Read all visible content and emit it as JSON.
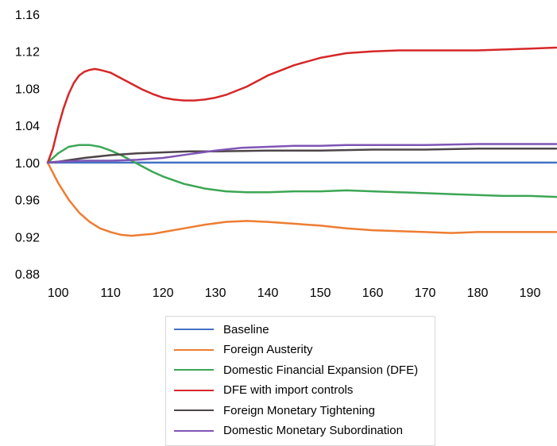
{
  "chart_data": {
    "type": "line",
    "title": "",
    "xlabel": "",
    "ylabel": "",
    "xlim": [
      98,
      195
    ],
    "ylim": [
      0.88,
      1.16
    ],
    "xticks": [
      100,
      110,
      120,
      130,
      140,
      150,
      160,
      170,
      180,
      190
    ],
    "yticks": [
      0.88,
      0.92,
      0.96,
      1.0,
      1.04,
      1.08,
      1.12,
      1.16
    ],
    "ytick_labels": [
      "0.88",
      "0.92",
      "0.96",
      "1.00",
      "1.04",
      "1.08",
      "1.12",
      "1.16"
    ],
    "grid": false,
    "legend_position": "bottom",
    "series": [
      {
        "name": "Baseline",
        "color": "#4472C4",
        "x": [
          98,
          195
        ],
        "y": [
          1.0,
          1.0
        ]
      },
      {
        "name": "Foreign Austerity",
        "color": "#ED7D31",
        "x": [
          98,
          100,
          102,
          104,
          106,
          108,
          110,
          112,
          114,
          116,
          118,
          120,
          124,
          128,
          132,
          136,
          140,
          145,
          150,
          155,
          160,
          165,
          170,
          175,
          180,
          185,
          190,
          195
        ],
        "y": [
          1.0,
          0.978,
          0.96,
          0.946,
          0.936,
          0.929,
          0.925,
          0.922,
          0.921,
          0.922,
          0.923,
          0.925,
          0.929,
          0.933,
          0.936,
          0.937,
          0.936,
          0.934,
          0.932,
          0.929,
          0.927,
          0.926,
          0.925,
          0.924,
          0.925,
          0.925,
          0.925,
          0.925
        ]
      },
      {
        "name": "Domestic Financial Expansion (DFE)",
        "color": "#3CA654",
        "x": [
          98,
          100,
          102,
          104,
          106,
          108,
          110,
          112,
          114,
          116,
          118,
          120,
          124,
          128,
          132,
          136,
          140,
          145,
          150,
          155,
          160,
          165,
          170,
          175,
          180,
          185,
          190,
          195
        ],
        "y": [
          1.0,
          1.01,
          1.017,
          1.019,
          1.019,
          1.017,
          1.013,
          1.008,
          1.002,
          0.996,
          0.99,
          0.985,
          0.977,
          0.972,
          0.969,
          0.968,
          0.968,
          0.969,
          0.969,
          0.97,
          0.969,
          0.968,
          0.967,
          0.966,
          0.965,
          0.964,
          0.964,
          0.963
        ]
      },
      {
        "name": "DFE with import controls",
        "color": "#D62728",
        "x": [
          98,
          99,
          100,
          101,
          102,
          103,
          104,
          105,
          106,
          107,
          108,
          110,
          112,
          114,
          116,
          118,
          120,
          122,
          124,
          126,
          128,
          130,
          132,
          136,
          140,
          145,
          150,
          155,
          160,
          165,
          170,
          175,
          180,
          185,
          190,
          195
        ],
        "y": [
          1.0,
          1.015,
          1.038,
          1.058,
          1.074,
          1.086,
          1.094,
          1.098,
          1.1,
          1.101,
          1.1,
          1.097,
          1.091,
          1.085,
          1.079,
          1.074,
          1.07,
          1.068,
          1.067,
          1.067,
          1.068,
          1.07,
          1.073,
          1.082,
          1.094,
          1.105,
          1.113,
          1.118,
          1.12,
          1.121,
          1.121,
          1.121,
          1.121,
          1.122,
          1.123,
          1.124
        ]
      },
      {
        "name": "Foreign Monetary Tightening",
        "color": "#4D4549",
        "x": [
          98,
          100,
          105,
          110,
          115,
          120,
          125,
          130,
          140,
          150,
          160,
          170,
          180,
          190,
          195
        ],
        "y": [
          1.0,
          1.001,
          1.005,
          1.008,
          1.01,
          1.011,
          1.012,
          1.012,
          1.013,
          1.013,
          1.014,
          1.014,
          1.015,
          1.015,
          1.015
        ]
      },
      {
        "name": "Domestic Monetary Subordination",
        "color": "#7F55B5",
        "x": [
          98,
          100,
          105,
          110,
          115,
          120,
          125,
          130,
          135,
          140,
          145,
          150,
          155,
          160,
          170,
          180,
          190,
          195
        ],
        "y": [
          1.0,
          1.001,
          1.002,
          1.002,
          1.003,
          1.005,
          1.009,
          1.013,
          1.016,
          1.017,
          1.018,
          1.018,
          1.019,
          1.019,
          1.019,
          1.02,
          1.02,
          1.02
        ]
      }
    ]
  }
}
